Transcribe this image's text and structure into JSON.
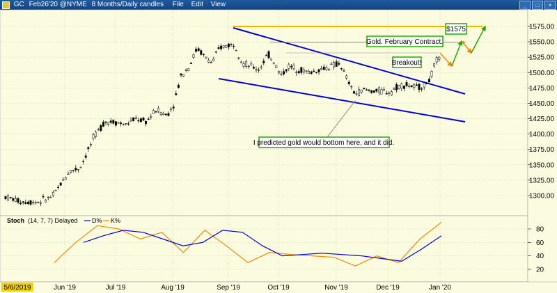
{
  "window": {
    "symbol": "GC",
    "title": "Feb26'20 @NYME",
    "timeframe": "8 Months/Daily candles",
    "menu": [
      "File",
      "Edit",
      "View"
    ]
  },
  "colors": {
    "background": "#fbfbe0",
    "titlebar": "#1f5a9e",
    "trendline": "#0000cc",
    "resistance": "#f2b200",
    "arrow_orange": "#f08a00",
    "arrow_green": "#1faa00",
    "candle_up": "#ffffff",
    "candle_down": "#000000",
    "stoch_d": "#0000cc",
    "stoch_k": "#f08a00"
  },
  "price_axis": {
    "ticks": [
      "1575.00",
      "1550.00",
      "1525.00",
      "1500.00",
      "1475.00",
      "1450.00",
      "1425.00",
      "1400.00",
      "1375.00",
      "1350.00",
      "1325.00",
      "1300.00"
    ]
  },
  "stoch_axis": {
    "ticks": [
      "80",
      "60",
      "40",
      "20"
    ]
  },
  "date_axis": {
    "start_label": "5/6/2019",
    "labels": [
      "Jun '19",
      "Jul '19",
      "Aug '19",
      "Sep '19",
      "Oct '19",
      "Nov '19",
      "Dec '19",
      "Jan '20"
    ]
  },
  "stoch_header": {
    "name": "Stoch",
    "params": "(14, 7, 7) Delayed",
    "d_label": "D%",
    "k_label": "K%"
  },
  "annotations": {
    "target": "$1575",
    "contract": "Gold. February Contract.",
    "breakout": "Breakout!",
    "prediction": "I predicted gold would bottom here, and it did."
  },
  "chart_data": {
    "type": "candlestick",
    "title": "GC Feb26'20 @NYME 8 Months/Daily candles",
    "ylim": [
      1285,
      1585
    ],
    "x_range": [
      "2019-05-06",
      "2020-01-03"
    ],
    "ohlc_approx": [
      [
        "May '19",
        1283,
        1310
      ],
      [
        "Jun '19",
        1305,
        1355
      ],
      [
        "Jul '19",
        1395,
        1445
      ],
      [
        "Aug '19",
        1430,
        1565
      ],
      [
        "Sep '19",
        1485,
        1573
      ],
      [
        "Oct '19",
        1480,
        1520
      ],
      [
        "Nov '19",
        1455,
        1515
      ],
      [
        "Dec '19",
        1465,
        1495
      ],
      [
        "Jan '20",
        1510,
        1530
      ]
    ],
    "resistance_level": 1575,
    "upper_channel": [
      [
        "Sep '19",
        1575
      ],
      [
        "Jan '20",
        1467
      ]
    ],
    "lower_channel": [
      [
        "Aug '19",
        1490
      ],
      [
        "Jan '20",
        1421
      ]
    ],
    "stochastic": {
      "k_approx": [
        30,
        60,
        85,
        80,
        65,
        75,
        45,
        78,
        55,
        30,
        45,
        42,
        40,
        38,
        25,
        40,
        30,
        65,
        90
      ],
      "d_approx": [
        60,
        70,
        78,
        75,
        65,
        55,
        60,
        78,
        75,
        55,
        40,
        42,
        44,
        42,
        40,
        36,
        32,
        50,
        70
      ],
      "ylim": [
        0,
        100
      ]
    }
  }
}
